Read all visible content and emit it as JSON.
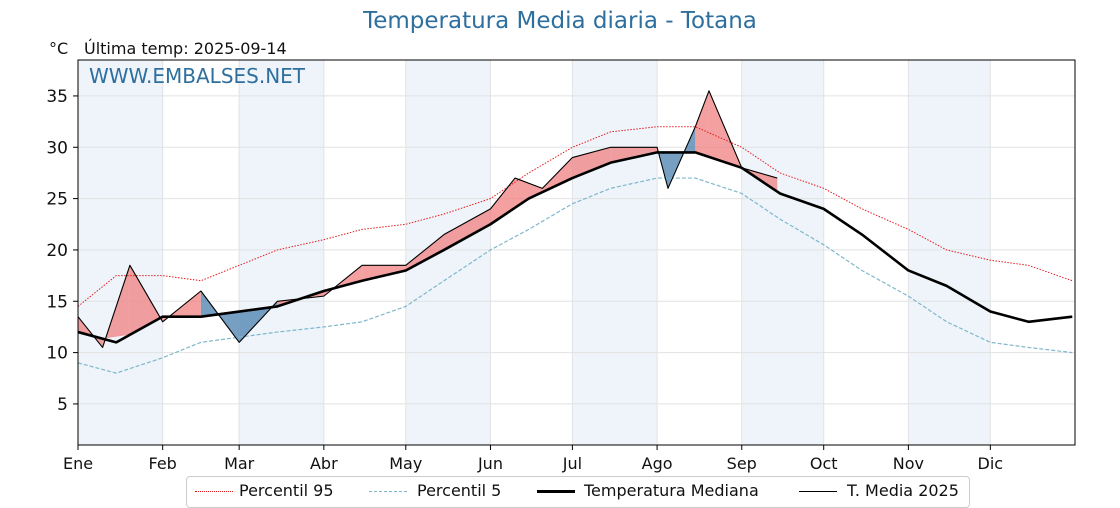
{
  "title": "Temperatura Media diaria - Totana",
  "unit": "°C",
  "last_temp_label": "Última temp:",
  "last_temp_date": "2025-09-14",
  "watermark": "WWW.EMBALSES.NET",
  "legend": {
    "p95": "Percentil 95",
    "p5": "Percentil 5",
    "median": "Temperatura Mediana",
    "current": "T. Media 2025"
  },
  "colors": {
    "title": "#2e6f9e",
    "p95": "#e41a1c",
    "p5": "#7fb7cc",
    "median": "#000000",
    "above_fill": "#f08080",
    "below_fill": "#4a7fad",
    "shade": "#eef4fa"
  },
  "chart_data": {
    "type": "line",
    "title": "Temperatura Media diaria - Totana",
    "ylabel": "°C",
    "xlabel": "",
    "ylim": [
      1,
      38.5
    ],
    "xlim_days": [
      1,
      366
    ],
    "yticks": [
      5,
      10,
      15,
      20,
      25,
      30,
      35
    ],
    "month_ticks": [
      "Ene",
      "Feb",
      "Mar",
      "Abr",
      "May",
      "Jun",
      "Jul",
      "Ago",
      "Sep",
      "Oct",
      "Nov",
      "Dic"
    ],
    "grid": true,
    "legend_position": "bottom",
    "series": [
      {
        "name": "Percentil 95",
        "style": "dotted-red",
        "x": [
          "01-01",
          "01-15",
          "02-01",
          "02-15",
          "03-01",
          "03-15",
          "04-01",
          "04-15",
          "05-01",
          "05-15",
          "06-01",
          "06-15",
          "07-01",
          "07-15",
          "08-01",
          "08-15",
          "09-01",
          "09-15",
          "10-01",
          "10-15",
          "11-01",
          "11-15",
          "12-01",
          "12-15",
          "12-31"
        ],
        "values": [
          14.5,
          17.5,
          17.5,
          17.0,
          18.5,
          20.0,
          21.0,
          22.0,
          22.5,
          23.5,
          25.0,
          27.5,
          30.0,
          31.5,
          32.0,
          32.0,
          30.0,
          27.5,
          26.0,
          24.0,
          22.0,
          20.0,
          19.0,
          18.5,
          17.0
        ]
      },
      {
        "name": "Percentil 5",
        "style": "dashed-lightblue",
        "x": [
          "01-01",
          "01-15",
          "02-01",
          "02-15",
          "03-01",
          "03-15",
          "04-01",
          "04-15",
          "05-01",
          "05-15",
          "06-01",
          "06-15",
          "07-01",
          "07-15",
          "08-01",
          "08-15",
          "09-01",
          "09-15",
          "10-01",
          "10-15",
          "11-01",
          "11-15",
          "12-01",
          "12-15",
          "12-31"
        ],
        "values": [
          9.0,
          8.0,
          9.5,
          11.0,
          11.5,
          12.0,
          12.5,
          13.0,
          14.5,
          17.0,
          20.0,
          22.0,
          24.5,
          26.0,
          27.0,
          27.0,
          25.5,
          23.0,
          20.5,
          18.0,
          15.5,
          13.0,
          11.0,
          10.5,
          10.0
        ]
      },
      {
        "name": "Temperatura Mediana",
        "style": "thick-black",
        "x": [
          "01-01",
          "01-15",
          "02-01",
          "02-15",
          "03-01",
          "03-15",
          "04-01",
          "04-15",
          "05-01",
          "05-15",
          "06-01",
          "06-15",
          "07-01",
          "07-15",
          "08-01",
          "08-15",
          "09-01",
          "09-15",
          "10-01",
          "10-15",
          "11-01",
          "11-15",
          "12-01",
          "12-15",
          "12-31"
        ],
        "values": [
          12.0,
          11.0,
          13.5,
          13.5,
          14.0,
          14.5,
          16.0,
          17.0,
          18.0,
          20.0,
          22.5,
          25.0,
          27.0,
          28.5,
          29.5,
          29.5,
          28.0,
          25.5,
          24.0,
          21.5,
          18.0,
          16.5,
          14.0,
          13.0,
          13.5
        ]
      },
      {
        "name": "T. Media 2025",
        "style": "thin-black",
        "x": [
          "01-01",
          "01-10",
          "01-20",
          "02-01",
          "02-15",
          "03-01",
          "03-15",
          "04-01",
          "04-15",
          "05-01",
          "05-15",
          "06-01",
          "06-10",
          "06-20",
          "07-01",
          "07-15",
          "08-01",
          "08-05",
          "08-15",
          "08-20",
          "09-01",
          "09-14"
        ],
        "values": [
          13.5,
          10.5,
          18.5,
          13.0,
          16.0,
          11.0,
          15.0,
          15.5,
          18.5,
          18.5,
          21.5,
          24.0,
          27.0,
          26.0,
          29.0,
          30.0,
          30.0,
          26.0,
          32.0,
          35.5,
          28.0,
          27.0
        ]
      }
    ]
  }
}
